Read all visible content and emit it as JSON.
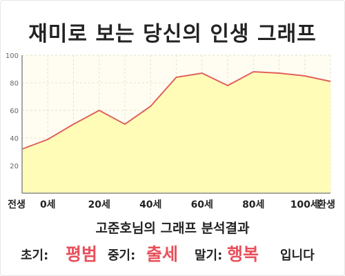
{
  "title": "재미로 보는 당신의 인생 그래프",
  "chart_data": {
    "type": "area",
    "x_tick_labels": [
      "전생",
      "0세",
      "20세",
      "40세",
      "60세",
      "80세",
      "100세",
      "환생"
    ],
    "y_ticks": [
      20,
      40,
      60,
      80,
      100
    ],
    "ylim": [
      0,
      100
    ],
    "grid": true,
    "points": [
      {
        "x": "전생",
        "y": 32
      },
      {
        "x": "0세",
        "y": 39
      },
      {
        "x": "10세",
        "y": 50
      },
      {
        "x": "20세",
        "y": 60
      },
      {
        "x": "30세",
        "y": 50
      },
      {
        "x": "40세",
        "y": 63
      },
      {
        "x": "50세",
        "y": 84
      },
      {
        "x": "60세",
        "y": 87
      },
      {
        "x": "70세",
        "y": 78
      },
      {
        "x": "80세",
        "y": 88
      },
      {
        "x": "90세",
        "y": 87
      },
      {
        "x": "100세",
        "y": 85
      },
      {
        "x": "환생",
        "y": 81
      }
    ],
    "colors": {
      "line": "#e0605c",
      "fill": "#fffcb8",
      "plot_bg": "#fffdf2",
      "grid": "#e6e1c4",
      "axis": "#8a8a8a"
    }
  },
  "result": {
    "subtitle": "고준호님의 그래프 분석결과",
    "early_label": "초기:",
    "early_value": "평범",
    "middle_label": "중기:",
    "middle_value": "출세",
    "late_label": "말기:",
    "late_value": "행복",
    "ending": "입니다"
  }
}
